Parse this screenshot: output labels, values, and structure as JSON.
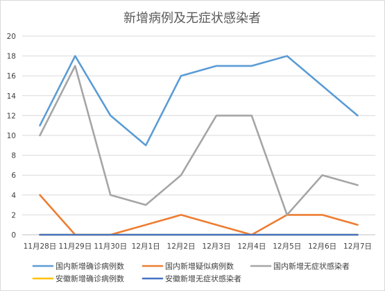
{
  "chart_data": {
    "type": "line",
    "title": "新增病例及无症状感染者",
    "categories": [
      "11月28日",
      "11月29日",
      "11月30日",
      "12月1日",
      "12月2日",
      "12月3日",
      "12月4日",
      "12月5日",
      "12月6日",
      "12月7日"
    ],
    "ylim": [
      0,
      20
    ],
    "yticks": [
      0,
      2,
      4,
      6,
      8,
      10,
      12,
      14,
      16,
      18,
      20
    ],
    "grid": true,
    "legend_position": "bottom",
    "series": [
      {
        "name": "国内新增确诊病例数",
        "color": "#5b9bd5",
        "values": [
          11,
          18,
          12,
          9,
          16,
          17,
          17,
          18,
          15,
          12
        ]
      },
      {
        "name": "国内新增疑似病例数",
        "color": "#ed7d31",
        "values": [
          4,
          0,
          0,
          1,
          2,
          1,
          0,
          2,
          2,
          1
        ]
      },
      {
        "name": "国内新增无症状感染者",
        "color": "#a5a5a5",
        "values": [
          10,
          17,
          4,
          3,
          6,
          12,
          12,
          2,
          6,
          5
        ]
      },
      {
        "name": "安徽新增确诊病例数",
        "color": "#ffc000",
        "values": [
          0,
          0,
          0,
          0,
          0,
          0,
          0,
          0,
          0,
          0
        ]
      },
      {
        "name": "安徽新增无症状感染者",
        "color": "#4472c4",
        "values": [
          0,
          0,
          0,
          0,
          0,
          0,
          0,
          0,
          0,
          0
        ]
      }
    ]
  }
}
